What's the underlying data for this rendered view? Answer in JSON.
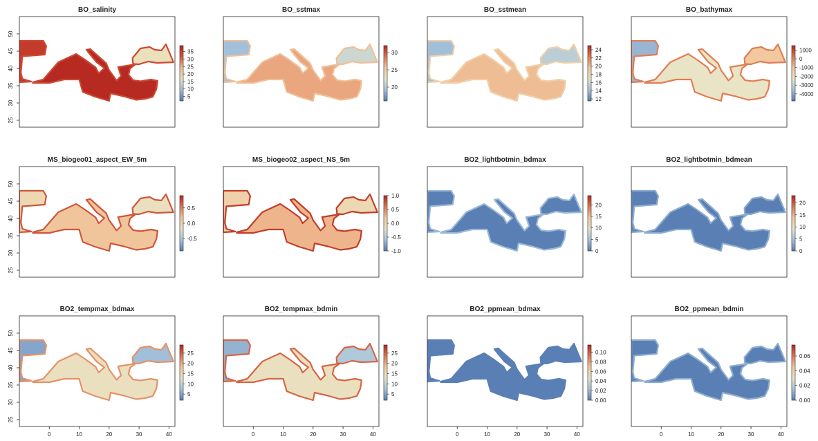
{
  "figure": {
    "type": "raster-map-grid",
    "rows": 3,
    "cols": 4
  },
  "axes": {
    "x": {
      "range": [
        -10,
        42
      ],
      "ticks": [
        0,
        10,
        20,
        30,
        40
      ]
    },
    "y": {
      "range": [
        23,
        55
      ],
      "ticks": [
        25,
        30,
        35,
        40,
        45,
        50
      ]
    }
  },
  "palettes": {
    "salinity": [
      "#5a7fb5",
      "#a8bfd6",
      "#e9e6c4",
      "#f0c090",
      "#d9583c",
      "#b5271f"
    ],
    "diverging": [
      "#5a7fb5",
      "#a8c4dc",
      "#e8e6c8",
      "#f2c9a0",
      "#e07a52",
      "#b8281d"
    ]
  },
  "chart_data": [
    {
      "type": "heatmap",
      "title": "BO_salinity",
      "row": 0,
      "col": 0,
      "legend_ticks": [
        "35",
        "30",
        "25",
        "20",
        "15",
        "10",
        "5"
      ],
      "scale": {
        "min": 2,
        "max": 39
      },
      "regions": {
        "atlantic": 36,
        "mediterranean": 38.5,
        "black_sea": 18,
        "coast": 34
      }
    },
    {
      "type": "heatmap",
      "title": "BO_sstmax",
      "row": 0,
      "col": 1,
      "legend_ticks": [
        "30",
        "25",
        "20"
      ],
      "scale": {
        "min": 16,
        "max": 32
      },
      "regions": {
        "atlantic": 19,
        "mediterranean": 27,
        "black_sea": 21,
        "coast": 26
      }
    },
    {
      "type": "heatmap",
      "title": "BO_sstmean",
      "row": 0,
      "col": 2,
      "legend_ticks": [
        "24",
        "22",
        "20",
        "18",
        "16",
        "14",
        "12"
      ],
      "scale": {
        "min": 11.5,
        "max": 25
      },
      "regions": {
        "atlantic": 14,
        "mediterranean": 20,
        "black_sea": 15,
        "coast": 19
      }
    },
    {
      "type": "heatmap",
      "title": "BO_bathymax",
      "row": 0,
      "col": 3,
      "legend_ticks": [
        "1000",
        "0",
        "-1000",
        "-2000",
        "-3000",
        "-4000"
      ],
      "scale": {
        "min": -4800,
        "max": 1500
      },
      "regions": {
        "atlantic": -3800,
        "mediterranean": -2200,
        "black_sea": -1000,
        "coast": 200
      }
    },
    {
      "type": "heatmap",
      "title": "MS_biogeo01_aspect_EW_5m",
      "row": 1,
      "col": 0,
      "legend_ticks": [
        "0.5",
        "0.0",
        "-0.5"
      ],
      "scale": {
        "min": -0.9,
        "max": 0.9
      },
      "regions": {
        "atlantic": 0.0,
        "mediterranean": 0.2,
        "black_sea": -0.1,
        "coast": 0.7
      }
    },
    {
      "type": "heatmap",
      "title": "MS_biogeo02_aspect_NS_5m",
      "row": 1,
      "col": 1,
      "legend_ticks": [
        "1.0",
        "0.5",
        "0.0",
        "-0.5",
        "-1.0"
      ],
      "scale": {
        "min": -1.0,
        "max": 1.0
      },
      "regions": {
        "atlantic": 0.1,
        "mediterranean": 0.3,
        "black_sea": 0.0,
        "coast": 0.9
      }
    },
    {
      "type": "heatmap",
      "title": "BO2_lightbotmin_bdmax",
      "row": 1,
      "col": 2,
      "legend_ticks": [
        "20",
        "15",
        "10",
        "5",
        "0"
      ],
      "scale": {
        "min": 0,
        "max": 24
      },
      "regions": {
        "atlantic": 0,
        "mediterranean": 0,
        "black_sea": 0,
        "coast": 4
      }
    },
    {
      "type": "heatmap",
      "title": "BO2_lightbotmin_bdmean",
      "row": 1,
      "col": 3,
      "legend_ticks": [
        "20",
        "15",
        "10",
        "5",
        "0"
      ],
      "scale": {
        "min": 0,
        "max": 23
      },
      "regions": {
        "atlantic": 0,
        "mediterranean": 0,
        "black_sea": 0,
        "coast": 3
      }
    },
    {
      "type": "heatmap",
      "title": "BO2_tempmax_bdmax",
      "row": 2,
      "col": 0,
      "legend_ticks": [
        "25",
        "20",
        "15",
        "10",
        "5"
      ],
      "scale": {
        "min": 2,
        "max": 29
      },
      "regions": {
        "atlantic": 5,
        "mediterranean": 14,
        "black_sea": 7,
        "coast": 22
      }
    },
    {
      "type": "heatmap",
      "title": "BO2_tempmax_bdmin",
      "row": 2,
      "col": 1,
      "legend_ticks": [
        "25",
        "20",
        "15",
        "10",
        "5"
      ],
      "scale": {
        "min": 2,
        "max": 29
      },
      "regions": {
        "atlantic": 6,
        "mediterranean": 14,
        "black_sea": 8,
        "coast": 25
      }
    },
    {
      "type": "heatmap",
      "title": "BO2_ppmean_bdmax",
      "row": 2,
      "col": 2,
      "legend_ticks": [
        "0.10",
        "0.08",
        "0.06",
        "0.04",
        "0.02",
        "0.00"
      ],
      "scale": {
        "min": 0,
        "max": 0.115
      },
      "regions": {
        "atlantic": 0,
        "mediterranean": 0,
        "black_sea": 0,
        "coast": 0
      }
    },
    {
      "type": "heatmap",
      "title": "BO2_ppmean_bdmin",
      "row": 2,
      "col": 3,
      "legend_ticks": [
        "0.06",
        "0.04",
        "0.02",
        "0.00"
      ],
      "scale": {
        "min": 0,
        "max": 0.075
      },
      "regions": {
        "atlantic": 0,
        "mediterranean": 0,
        "black_sea": 0,
        "coast": 0.01
      }
    }
  ]
}
